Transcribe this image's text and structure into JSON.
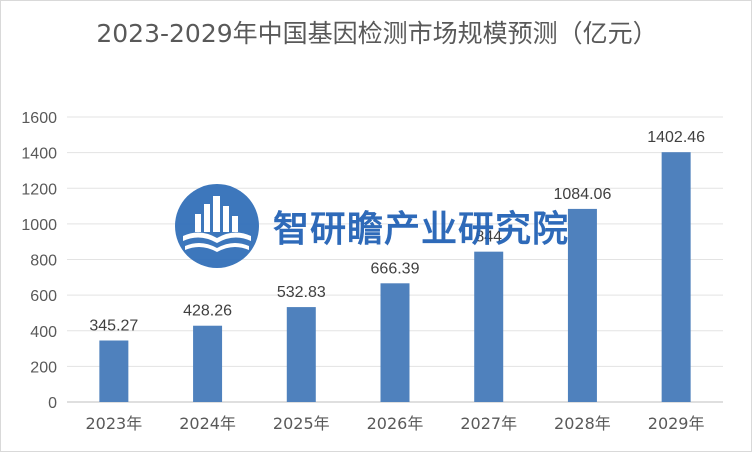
{
  "chart_data": {
    "type": "bar",
    "title": "2023-2029年中国基因检测市场规模预测（亿元）",
    "categories": [
      "2023年",
      "2024年",
      "2025年",
      "2026年",
      "2027年",
      "2028年",
      "2029年"
    ],
    "values": [
      345.27,
      428.26,
      532.83,
      666.39,
      844,
      1084.06,
      1402.46
    ],
    "data_labels": [
      "345.27",
      "428.26",
      "532.83",
      "666.39",
      "844",
      "1084.06",
      "1402.46"
    ],
    "ylim": [
      0,
      1600
    ],
    "yticks": [
      0,
      200,
      400,
      600,
      800,
      1000,
      1200,
      1400,
      1600
    ],
    "grid": true,
    "legend": "none",
    "bar_color": "#4f81bd"
  },
  "watermark": {
    "text": "智研瞻产业研究院",
    "logo": "building-book-globe-logo"
  }
}
